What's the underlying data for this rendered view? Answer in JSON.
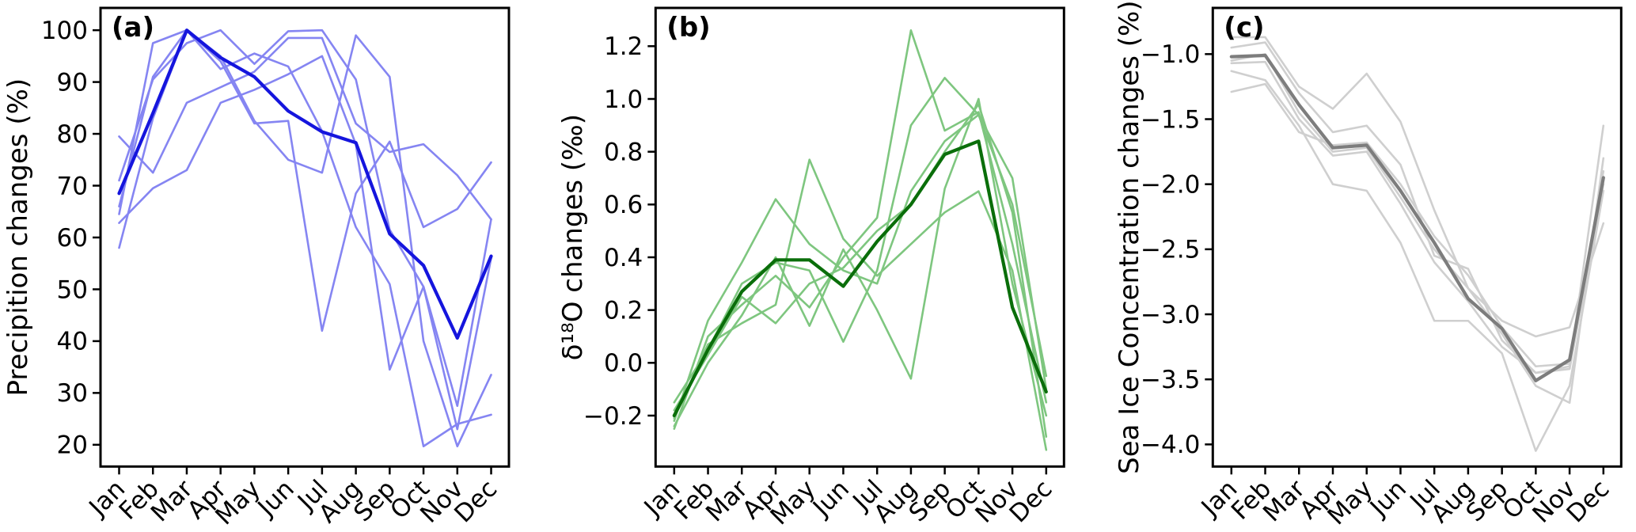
{
  "figure": {
    "background": "#ffffff",
    "months": [
      "Jan",
      "Feb",
      "Mar",
      "Apr",
      "May",
      "Jun",
      "Jul",
      "Aug",
      "Sep",
      "Oct",
      "Nov",
      "Dec"
    ]
  },
  "chart_data": [
    {
      "type": "line",
      "panel_label": "(a)",
      "ylabel": "Precipition changes (%)",
      "xlabel": "",
      "categories": [
        "Jan",
        "Feb",
        "Mar",
        "Apr",
        "May",
        "Jun",
        "Jul",
        "Aug",
        "Sep",
        "Oct",
        "Nov",
        "Dec"
      ],
      "ylim": [
        15.8,
        104.3
      ],
      "yticks": [
        20,
        30,
        40,
        50,
        60,
        70,
        80,
        90,
        100
      ],
      "ytick_decimals": 0,
      "grid": false,
      "legend": "none",
      "member_color": "#8585f2",
      "mean_color": "#1515dd",
      "series": [
        {
          "name": "member-1",
          "role": "member",
          "values": [
            79.5,
            72.5,
            86.0,
            89.0,
            92.0,
            98.5,
            98.5,
            82.0,
            76.5,
            78.0,
            72.0,
            63.5
          ]
        },
        {
          "name": "member-2",
          "role": "member",
          "values": [
            66.0,
            91.0,
            100.0,
            94.0,
            82.0,
            82.5,
            42.0,
            68.5,
            78.5,
            62.0,
            65.5,
            74.5
          ]
        },
        {
          "name": "member-3",
          "role": "member",
          "values": [
            71.0,
            90.5,
            97.5,
            100.0,
            93.5,
            99.8,
            100.0,
            90.5,
            61.5,
            50.5,
            27.5,
            63.5
          ]
        },
        {
          "name": "member-4",
          "role": "member",
          "values": [
            64.5,
            97.5,
            100.0,
            95.0,
            82.5,
            75.0,
            72.5,
            99.0,
            91.0,
            40.0,
            19.7,
            33.5
          ]
        },
        {
          "name": "member-5",
          "role": "member",
          "values": [
            62.8,
            69.5,
            73.0,
            86.0,
            88.5,
            91.5,
            95.0,
            78.0,
            34.5,
            50.5,
            23.0,
            56.0
          ]
        },
        {
          "name": "member-6",
          "role": "member",
          "values": [
            58.0,
            83.0,
            100.0,
            92.5,
            95.5,
            93.0,
            80.5,
            62.0,
            51.0,
            19.7,
            24.0,
            25.8
          ]
        },
        {
          "name": "ensemble-mean",
          "role": "mean",
          "values": [
            68.5,
            84.0,
            100.0,
            94.7,
            91.0,
            84.4,
            80.4,
            78.3,
            60.7,
            54.6,
            40.6,
            56.4
          ]
        }
      ]
    },
    {
      "type": "line",
      "panel_label": "(b)",
      "ylabel": "δ¹⁸O changes (‰)",
      "xlabel": "",
      "categories": [
        "Jan",
        "Feb",
        "Mar",
        "Apr",
        "May",
        "Jun",
        "Jul",
        "Aug",
        "Sep",
        "Oct",
        "Nov",
        "Dec"
      ],
      "ylim": [
        -0.393,
        1.345
      ],
      "yticks": [
        -0.2,
        0.0,
        0.2,
        0.4,
        0.6,
        0.8,
        1.0,
        1.2
      ],
      "ytick_decimals": 1,
      "grid": false,
      "legend": "none",
      "member_color": "#7ec67f",
      "mean_color": "#0a6e0a",
      "series": [
        {
          "name": "member-1",
          "role": "member",
          "values": [
            -0.25,
            0.1,
            0.22,
            0.33,
            0.21,
            0.4,
            0.55,
            1.26,
            0.88,
            0.95,
            0.45,
            -0.15
          ]
        },
        {
          "name": "member-2",
          "role": "member",
          "values": [
            -0.22,
            0.16,
            0.38,
            0.62,
            0.45,
            0.35,
            0.3,
            0.65,
            0.84,
            0.94,
            0.6,
            -0.05
          ]
        },
        {
          "name": "member-3",
          "role": "member",
          "values": [
            -0.21,
            0.07,
            0.15,
            0.22,
            0.77,
            0.47,
            0.33,
            0.45,
            0.57,
            0.65,
            0.35,
            -0.33
          ]
        },
        {
          "name": "member-4",
          "role": "member",
          "values": [
            -0.15,
            0.05,
            0.3,
            0.38,
            0.35,
            0.08,
            0.35,
            0.9,
            1.08,
            0.94,
            0.7,
            -0.1
          ]
        },
        {
          "name": "member-5",
          "role": "member",
          "values": [
            -0.24,
            0.0,
            0.18,
            0.4,
            0.14,
            0.43,
            0.2,
            -0.06,
            0.66,
            1.0,
            0.3,
            -0.2
          ]
        },
        {
          "name": "member-6",
          "role": "member",
          "values": [
            -0.18,
            0.03,
            0.25,
            0.15,
            0.3,
            0.36,
            0.5,
            0.6,
            0.8,
            0.98,
            0.57,
            -0.28
          ]
        },
        {
          "name": "ensemble-mean",
          "role": "mean",
          "values": [
            -0.2,
            0.05,
            0.27,
            0.39,
            0.39,
            0.29,
            0.46,
            0.6,
            0.79,
            0.84,
            0.21,
            -0.11
          ]
        }
      ]
    },
    {
      "type": "line",
      "panel_label": "(c)",
      "ylabel": "Sea Ice Concentration changes (%)",
      "xlabel": "",
      "categories": [
        "Jan",
        "Feb",
        "Mar",
        "Apr",
        "May",
        "Jun",
        "Jul",
        "Aug",
        "Sep",
        "Oct",
        "Nov",
        "Dec"
      ],
      "ylim": [
        -4.17,
        -0.645
      ],
      "yticks": [
        -4.0,
        -3.5,
        -3.0,
        -2.5,
        -2.0,
        -1.5,
        -1.0
      ],
      "ytick_decimals": 1,
      "grid": false,
      "legend": "none",
      "member_color": "#cfcfcf",
      "mean_color": "#7d7d7d",
      "series": [
        {
          "name": "member-1",
          "role": "member",
          "values": [
            -0.87,
            -0.87,
            -1.25,
            -1.42,
            -1.15,
            -1.52,
            -2.2,
            -2.8,
            -3.05,
            -3.17,
            -3.1,
            -2.3
          ]
        },
        {
          "name": "member-2",
          "role": "member",
          "values": [
            -1.13,
            -1.2,
            -1.55,
            -2.0,
            -2.05,
            -2.45,
            -3.05,
            -3.05,
            -3.3,
            -4.05,
            -3.55,
            -2.05
          ]
        },
        {
          "name": "member-3",
          "role": "member",
          "values": [
            -0.95,
            -0.91,
            -1.3,
            -1.6,
            -1.55,
            -1.85,
            -2.55,
            -2.65,
            -3.2,
            -3.45,
            -3.4,
            -1.55
          ]
        },
        {
          "name": "member-4",
          "role": "member",
          "values": [
            -1.05,
            -1.0,
            -1.45,
            -1.75,
            -1.72,
            -2.1,
            -2.5,
            -2.8,
            -3.15,
            -3.55,
            -3.68,
            -1.8
          ]
        },
        {
          "name": "member-5",
          "role": "member",
          "values": [
            -1.07,
            -1.06,
            -1.5,
            -1.78,
            -1.75,
            -2.15,
            -2.6,
            -2.9,
            -3.25,
            -3.45,
            -3.42,
            -2.0
          ]
        },
        {
          "name": "member-6",
          "role": "member",
          "values": [
            -1.29,
            -1.23,
            -1.6,
            -1.7,
            -1.68,
            -2.0,
            -2.4,
            -2.7,
            -3.1,
            -3.4,
            -3.38,
            -1.9
          ]
        },
        {
          "name": "ensemble-mean",
          "role": "mean",
          "values": [
            -1.02,
            -1.01,
            -1.39,
            -1.72,
            -1.7,
            -2.05,
            -2.45,
            -2.88,
            -3.11,
            -3.51,
            -3.35,
            -1.95
          ]
        }
      ]
    }
  ]
}
